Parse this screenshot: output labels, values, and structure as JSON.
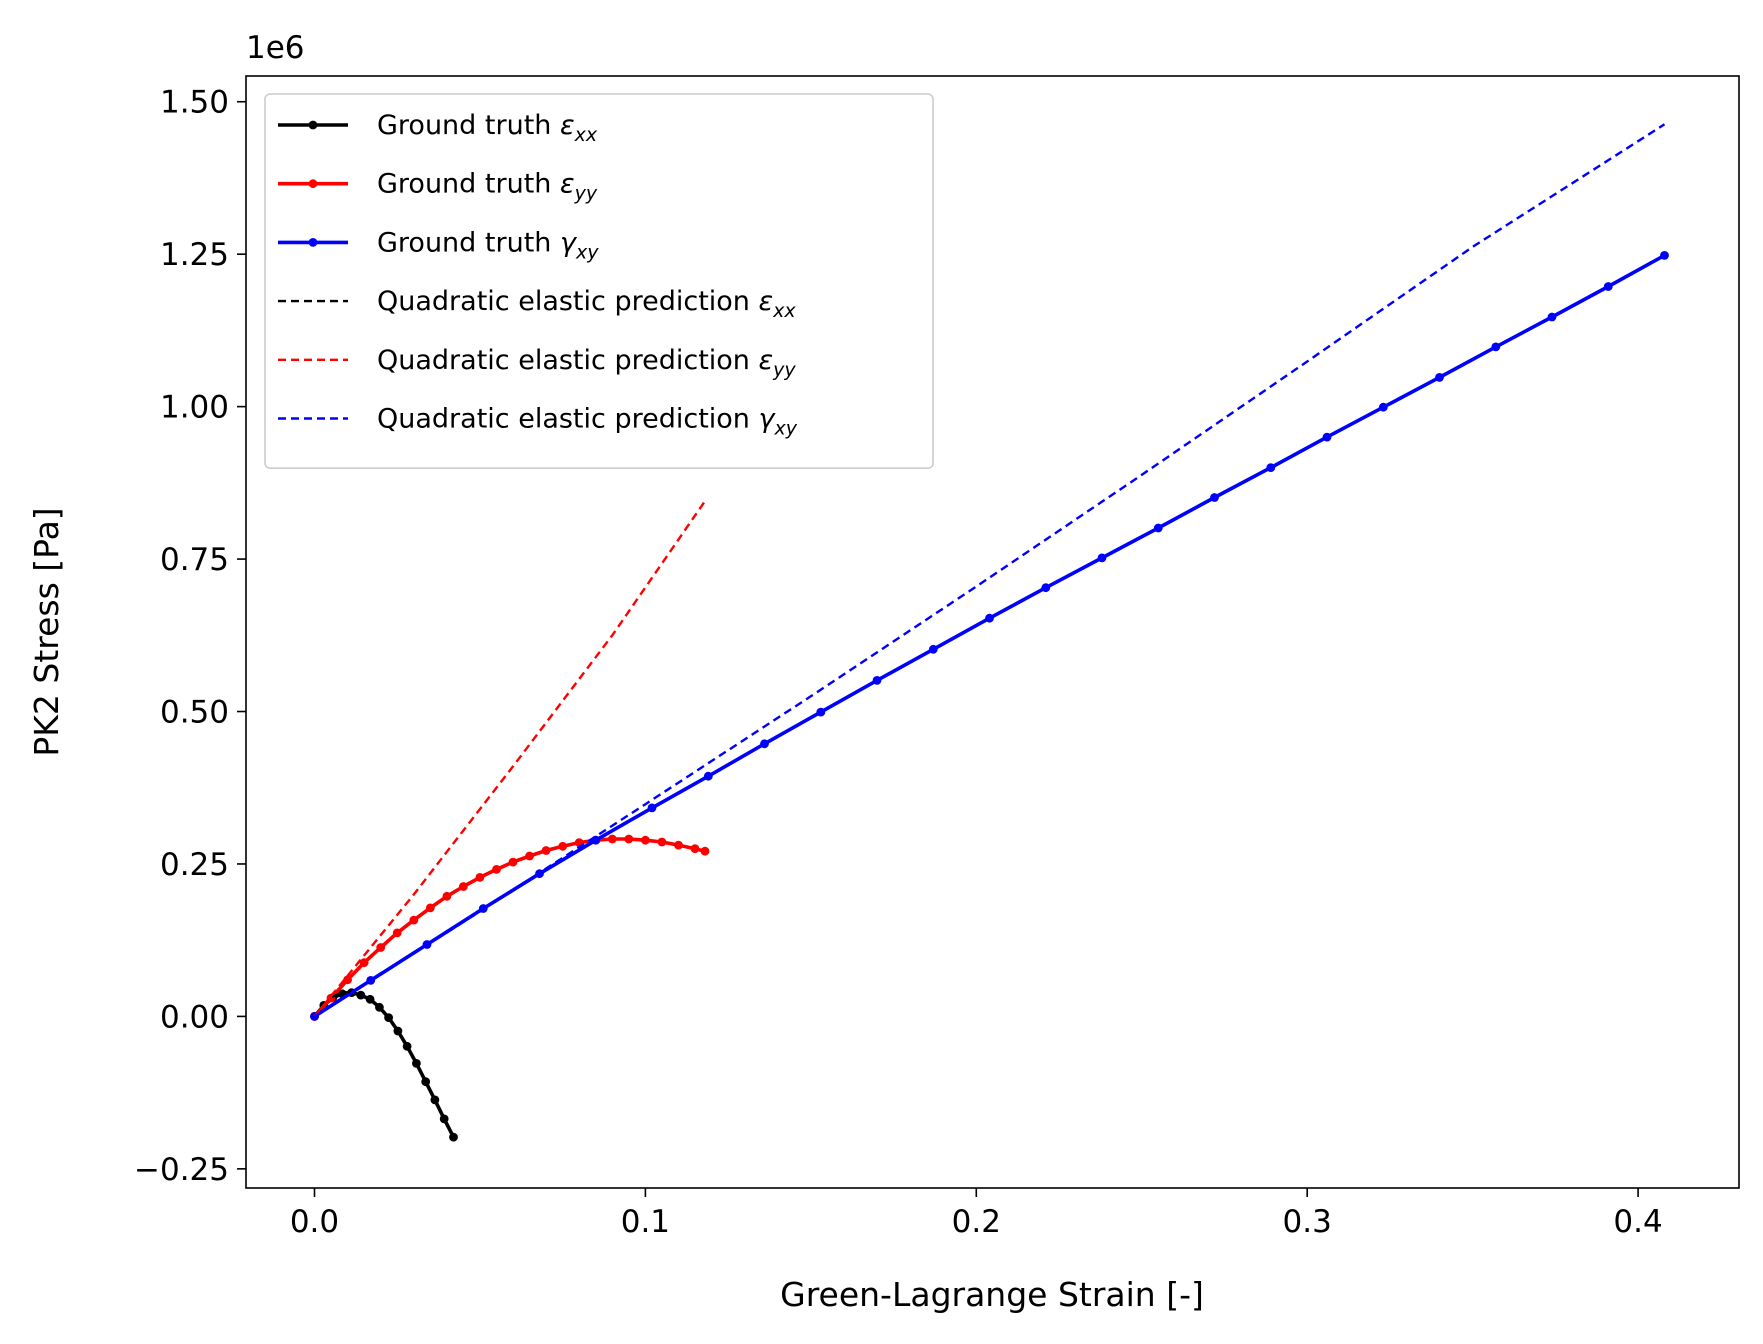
{
  "chart_data": {
    "type": "line",
    "title": "",
    "xlabel": "Green-Lagrange Strain [-]",
    "ylabel": "PK2 Stress [Pa]",
    "y_offset_label": "1e6",
    "xlim": [
      -0.0207,
      0.4305
    ],
    "ylim": [
      -0.2814,
      1.5422
    ],
    "xticks": [
      0.0,
      0.1,
      0.2,
      0.3,
      0.4
    ],
    "xtick_labels": [
      "0.0",
      "0.1",
      "0.2",
      "0.3",
      "0.4"
    ],
    "yticks": [
      -0.25,
      0.0,
      0.25,
      0.5,
      0.75,
      1.0,
      1.25,
      1.5
    ],
    "ytick_labels": [
      "−0.25",
      "0.00",
      "0.25",
      "0.50",
      "0.75",
      "1.00",
      "1.25",
      "1.50"
    ],
    "grid": false,
    "legend_position": "upper-left",
    "series": [
      {
        "name": "Ground truth εxx",
        "legend_base": "Ground truth ",
        "legend_sym": "ε",
        "legend_sub": "xx",
        "color": "#000000",
        "style": "solid-marker",
        "x": [
          0.0,
          0.0028,
          0.0056,
          0.0084,
          0.0112,
          0.014,
          0.0168,
          0.0196,
          0.0224,
          0.0252,
          0.028,
          0.0308,
          0.0336,
          0.0364,
          0.0392,
          0.042
        ],
        "y": [
          0.0,
          0.018,
          0.031,
          0.037,
          0.039,
          0.035,
          0.028,
          0.015,
          -0.002,
          -0.024,
          -0.049,
          -0.077,
          -0.107,
          -0.137,
          -0.168,
          -0.198
        ]
      },
      {
        "name": "Ground truth εyy",
        "legend_base": "Ground truth ",
        "legend_sym": "ε",
        "legend_sub": "yy",
        "color": "#ff0000",
        "style": "solid-marker",
        "x": [
          0.0,
          0.005,
          0.01,
          0.015,
          0.02,
          0.025,
          0.03,
          0.035,
          0.04,
          0.045,
          0.05,
          0.055,
          0.06,
          0.065,
          0.07,
          0.075,
          0.08,
          0.085,
          0.09,
          0.095,
          0.1,
          0.105,
          0.11,
          0.115,
          0.118
        ],
        "y": [
          0.0,
          0.03,
          0.06,
          0.088,
          0.113,
          0.137,
          0.158,
          0.178,
          0.197,
          0.213,
          0.228,
          0.241,
          0.253,
          0.263,
          0.272,
          0.279,
          0.285,
          0.289,
          0.291,
          0.291,
          0.289,
          0.286,
          0.281,
          0.275,
          0.271
        ]
      },
      {
        "name": "Ground truth γxy",
        "legend_base": "Ground truth ",
        "legend_sym": "γ",
        "legend_sub": "xy",
        "color": "#0000ff",
        "style": "solid-marker",
        "x": [
          0.0,
          0.017,
          0.034,
          0.051,
          0.068,
          0.085,
          0.102,
          0.119,
          0.136,
          0.153,
          0.17,
          0.187,
          0.204,
          0.221,
          0.238,
          0.255,
          0.272,
          0.289,
          0.306,
          0.323,
          0.34,
          0.357,
          0.374,
          0.391,
          0.408
        ],
        "y": [
          0.0,
          0.059,
          0.118,
          0.177,
          0.234,
          0.289,
          0.342,
          0.394,
          0.447,
          0.499,
          0.551,
          0.602,
          0.653,
          0.703,
          0.752,
          0.801,
          0.851,
          0.9,
          0.95,
          0.999,
          1.048,
          1.098,
          1.147,
          1.197,
          1.248
        ]
      },
      {
        "name": "Quadratic elastic prediction εxx",
        "legend_base": "Quadratic elastic prediction ",
        "legend_sym": "ε",
        "legend_sub": "xx",
        "color": "#000000",
        "style": "dashed",
        "x": [
          0.0,
          0.0028,
          0.0056,
          0.0084,
          0.0112
        ],
        "y": [
          0.0,
          0.02,
          0.033,
          0.039,
          0.04
        ]
      },
      {
        "name": "Quadratic elastic prediction εyy",
        "legend_base": "Quadratic elastic prediction ",
        "legend_sym": "ε",
        "legend_sub": "yy",
        "color": "#ff0000",
        "style": "dashed",
        "x": [
          0.0,
          0.03,
          0.06,
          0.09,
          0.118
        ],
        "y": [
          0.0,
          0.2,
          0.41,
          0.625,
          0.845
        ]
      },
      {
        "name": "Quadratic elastic prediction γxy",
        "legend_base": "Quadratic elastic prediction ",
        "legend_sym": "γ",
        "legend_sub": "xy",
        "color": "#0000ff",
        "style": "dashed",
        "x": [
          0.0,
          0.05,
          0.1,
          0.15,
          0.2,
          0.25,
          0.3,
          0.35,
          0.408
        ],
        "y": [
          0.0,
          0.172,
          0.348,
          0.525,
          0.705,
          0.888,
          1.074,
          1.262,
          1.463
        ]
      }
    ]
  }
}
